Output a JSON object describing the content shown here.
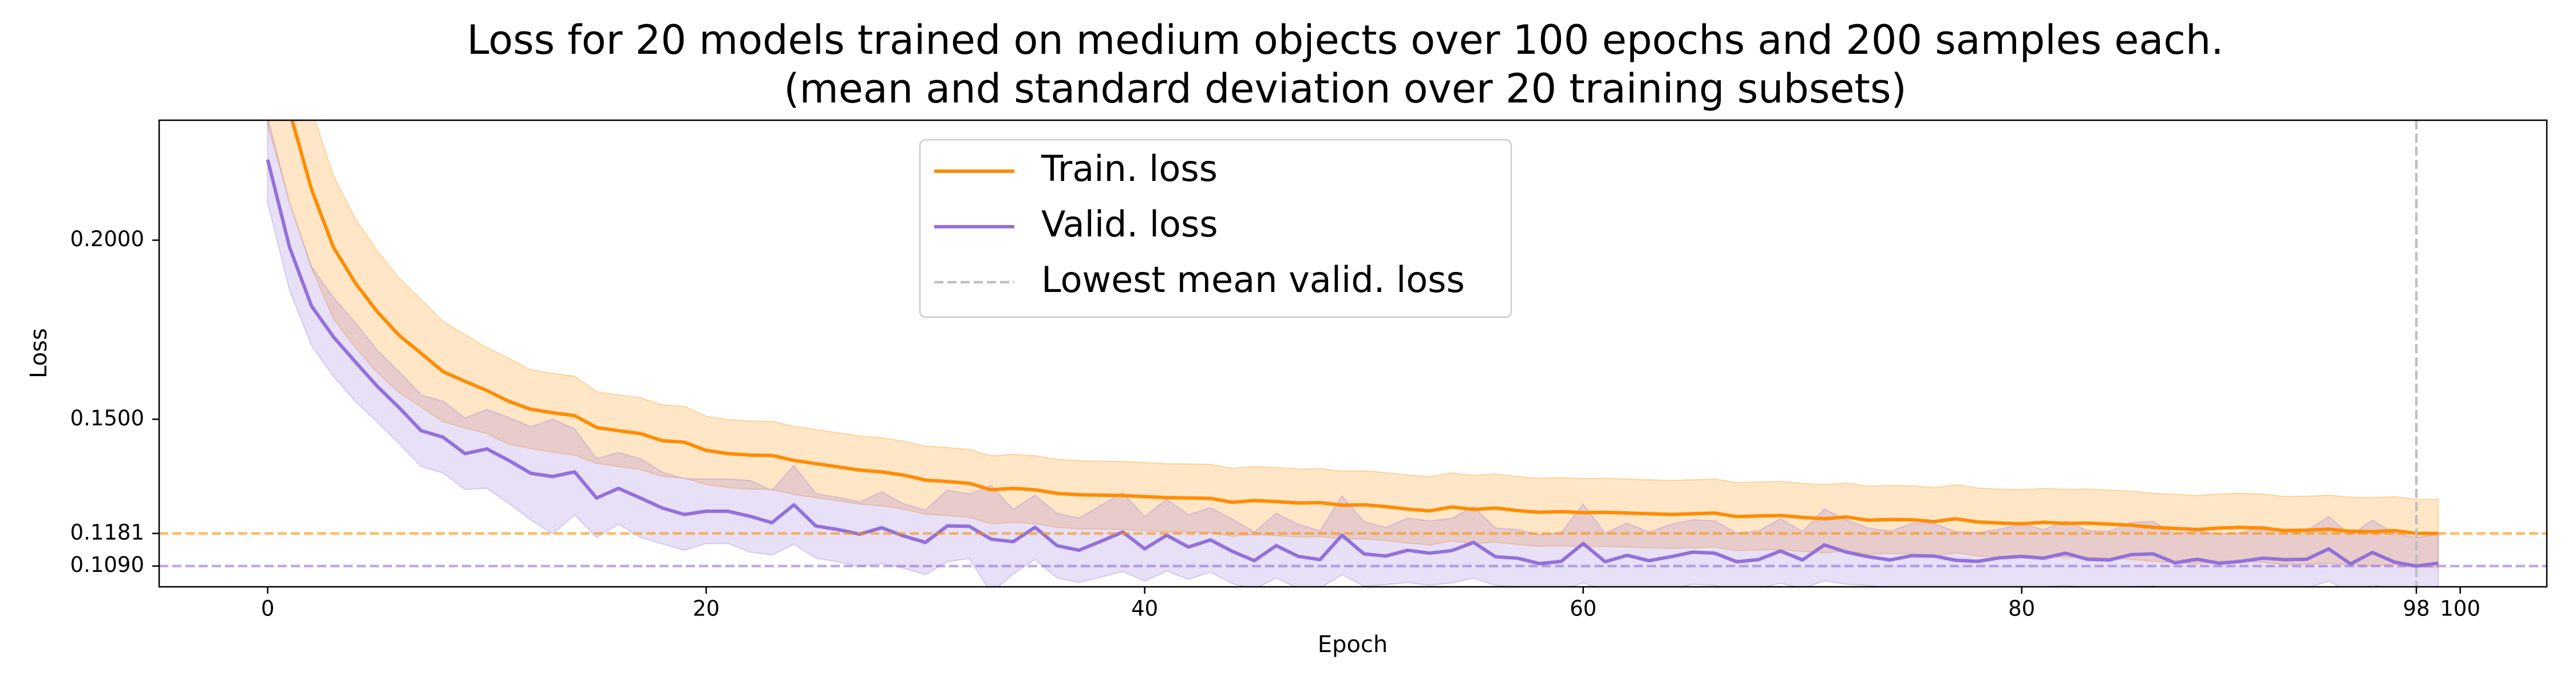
{
  "chart_data": {
    "type": "line",
    "title": [
      "Loss for 20 models trained on medium objects over 100 epochs and 200 samples each.",
      "(mean and standard deviation over 20 training subsets)"
    ],
    "xlabel": "Epoch",
    "ylabel": "Loss",
    "xlim": [
      -4.95,
      103.95
    ],
    "ylim": [
      0.1032,
      0.2335
    ],
    "xticks": [
      0,
      20,
      40,
      60,
      80,
      98,
      100
    ],
    "yticks": [
      {
        "value": 0.2,
        "label": "0.2000"
      },
      {
        "value": 0.15,
        "label": "0.1500"
      },
      {
        "value": 0.1181,
        "label": "0.1181"
      },
      {
        "value": 0.109,
        "label": "0.1090"
      }
    ],
    "legend": "upper center",
    "x": [
      0,
      1,
      2,
      3,
      4,
      5,
      6,
      7,
      8,
      9,
      10,
      11,
      12,
      13,
      14,
      15,
      16,
      17,
      18,
      19,
      20,
      21,
      22,
      23,
      24,
      25,
      26,
      27,
      28,
      29,
      30,
      31,
      32,
      33,
      34,
      35,
      36,
      37,
      38,
      39,
      40,
      41,
      42,
      43,
      44,
      45,
      46,
      47,
      48,
      49,
      50,
      51,
      52,
      53,
      54,
      55,
      56,
      57,
      58,
      59,
      60,
      61,
      62,
      63,
      64,
      65,
      66,
      67,
      68,
      69,
      70,
      71,
      72,
      73,
      74,
      75,
      76,
      77,
      78,
      79,
      80,
      81,
      82,
      83,
      84,
      85,
      86,
      87,
      88,
      89,
      90,
      91,
      92,
      93,
      94,
      95,
      96,
      97,
      98,
      99
    ],
    "series": [
      {
        "name": "Train. loss",
        "color": "#ff8c00",
        "values": [
          0.262,
          0.236,
          0.2142,
          0.198,
          0.188,
          0.18,
          0.1734,
          0.1684,
          0.1633,
          0.1606,
          0.158,
          0.155,
          0.1528,
          0.1518,
          0.151,
          0.1477,
          0.1468,
          0.146,
          0.144,
          0.1436,
          0.1413,
          0.1404,
          0.14,
          0.1399,
          0.1385,
          0.1376,
          0.1367,
          0.1358,
          0.1353,
          0.1344,
          0.133,
          0.1326,
          0.1321,
          0.1303,
          0.1307,
          0.1303,
          0.1293,
          0.1289,
          0.1288,
          0.1287,
          0.1284,
          0.1281,
          0.128,
          0.1279,
          0.1268,
          0.1273,
          0.127,
          0.1266,
          0.1267,
          0.126,
          0.1261,
          0.1256,
          0.1249,
          0.1244,
          0.1255,
          0.1248,
          0.1252,
          0.1245,
          0.124,
          0.1242,
          0.1239,
          0.124,
          0.1238,
          0.1236,
          0.1234,
          0.1236,
          0.1238,
          0.1228,
          0.123,
          0.1231,
          0.1226,
          0.1222,
          0.1227,
          0.1218,
          0.122,
          0.1219,
          0.1214,
          0.1222,
          0.1213,
          0.121,
          0.1208,
          0.1212,
          0.1209,
          0.121,
          0.1207,
          0.1204,
          0.1198,
          0.1195,
          0.1192,
          0.1196,
          0.1198,
          0.1196,
          0.1189,
          0.119,
          0.1193,
          0.1187,
          0.1186,
          0.1189,
          0.1181,
          0.1181
        ],
        "std": [
          0.03,
          0.025,
          0.022,
          0.02,
          0.018,
          0.017,
          0.016,
          0.015,
          0.014,
          0.013,
          0.012,
          0.012,
          0.011,
          0.011,
          0.011,
          0.01,
          0.01,
          0.01,
          0.01,
          0.01,
          0.0095,
          0.0095,
          0.0095,
          0.0095,
          0.0095,
          0.0095,
          0.0095,
          0.0095,
          0.0095,
          0.0095,
          0.0095,
          0.0095,
          0.0095,
          0.0095,
          0.0095,
          0.0095,
          0.0095,
          0.0095,
          0.0095,
          0.0095,
          0.0095,
          0.0095,
          0.0095,
          0.0095,
          0.0095,
          0.0095,
          0.0095,
          0.0095,
          0.0095,
          0.0095,
          0.0095,
          0.0095,
          0.0095,
          0.0095,
          0.0095,
          0.0095,
          0.0095,
          0.0095,
          0.0095,
          0.0095,
          0.0095,
          0.0095,
          0.0095,
          0.0095,
          0.0095,
          0.0095,
          0.0095,
          0.0095,
          0.0095,
          0.0095,
          0.0095,
          0.0095,
          0.0095,
          0.0095,
          0.0095,
          0.0095,
          0.0095,
          0.0095,
          0.0095,
          0.0095,
          0.0095,
          0.0095,
          0.0095,
          0.0095,
          0.0095,
          0.0095,
          0.0095,
          0.0095,
          0.0095,
          0.0095,
          0.0095,
          0.0095,
          0.0095,
          0.0095,
          0.0095,
          0.0095,
          0.0095,
          0.0095,
          0.0095,
          0.0095
        ]
      },
      {
        "name": "Valid. loss",
        "color": "#9370db",
        "values": [
          0.2225,
          0.198,
          0.1816,
          0.173,
          0.166,
          0.1592,
          0.1532,
          0.1468,
          0.145,
          0.1404,
          0.1417,
          0.1385,
          0.1349,
          0.134,
          0.1353,
          0.128,
          0.1307,
          0.128,
          0.1252,
          0.1234,
          0.1243,
          0.1243,
          0.1229,
          0.1211,
          0.1261,
          0.1202,
          0.1192,
          0.1179,
          0.1197,
          0.1174,
          0.1156,
          0.1202,
          0.1201,
          0.1165,
          0.1158,
          0.1198,
          0.1147,
          0.1134,
          0.1159,
          0.1185,
          0.1138,
          0.1176,
          0.1143,
          0.1163,
          0.1131,
          0.1105,
          0.1147,
          0.1117,
          0.1108,
          0.1176,
          0.1124,
          0.1118,
          0.1134,
          0.1126,
          0.1133,
          0.1156,
          0.1116,
          0.1112,
          0.1097,
          0.1103,
          0.1153,
          0.1102,
          0.112,
          0.1105,
          0.1116,
          0.1129,
          0.1126,
          0.1102,
          0.1108,
          0.1132,
          0.1107,
          0.1149,
          0.1129,
          0.1116,
          0.1107,
          0.1119,
          0.1118,
          0.1106,
          0.1103,
          0.1113,
          0.1117,
          0.1112,
          0.1126,
          0.1109,
          0.1107,
          0.1122,
          0.1124,
          0.1099,
          0.1109,
          0.1098,
          0.1103,
          0.1112,
          0.1108,
          0.1109,
          0.1138,
          0.1096,
          0.1128,
          0.1101,
          0.109,
          0.1098
        ],
        "std": [
          0.012,
          0.012,
          0.011,
          0.011,
          0.011,
          0.01,
          0.01,
          0.01,
          0.01,
          0.01,
          0.011,
          0.012,
          0.013,
          0.016,
          0.012,
          0.011,
          0.01,
          0.011,
          0.01,
          0.01,
          0.009,
          0.009,
          0.01,
          0.009,
          0.011,
          0.009,
          0.009,
          0.009,
          0.01,
          0.009,
          0.009,
          0.01,
          0.009,
          0.015,
          0.009,
          0.009,
          0.009,
          0.009,
          0.01,
          0.011,
          0.009,
          0.01,
          0.009,
          0.009,
          0.009,
          0.008,
          0.009,
          0.009,
          0.008,
          0.011,
          0.009,
          0.008,
          0.009,
          0.009,
          0.009,
          0.01,
          0.008,
          0.008,
          0.008,
          0.008,
          0.011,
          0.008,
          0.009,
          0.008,
          0.009,
          0.009,
          0.009,
          0.008,
          0.008,
          0.009,
          0.008,
          0.01,
          0.009,
          0.008,
          0.008,
          0.009,
          0.009,
          0.008,
          0.008,
          0.008,
          0.009,
          0.008,
          0.009,
          0.008,
          0.008,
          0.009,
          0.009,
          0.008,
          0.008,
          0.008,
          0.008,
          0.009,
          0.008,
          0.008,
          0.009,
          0.008,
          0.009,
          0.008,
          0.008,
          0.008
        ]
      }
    ],
    "hlines": [
      {
        "value": 0.1181,
        "color": "#ff8c00"
      },
      {
        "value": 0.109,
        "color": "#9370db"
      }
    ],
    "reference_line": {
      "name": "Lowest mean valid. loss",
      "x": 98,
      "color": "#c0c0c0"
    }
  }
}
